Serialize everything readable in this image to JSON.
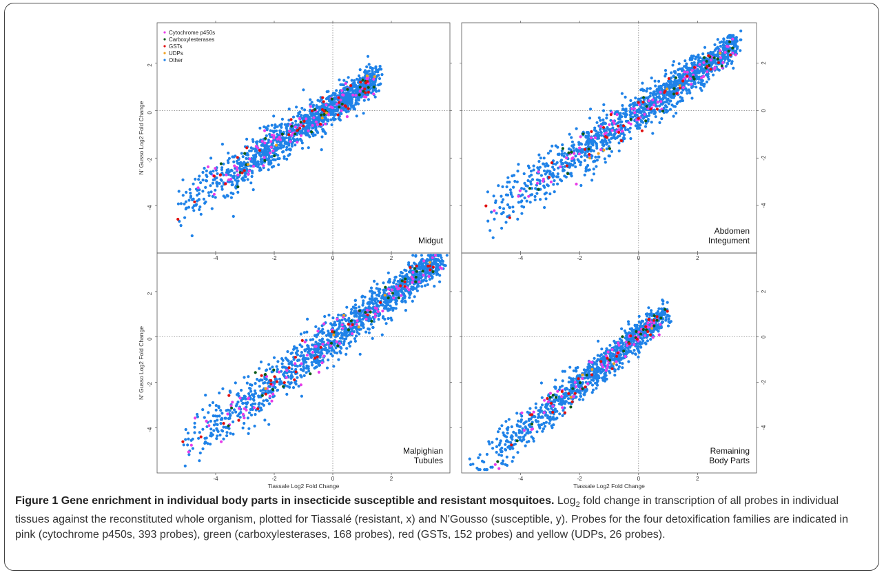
{
  "figure": {
    "caption_label": "Figure 1",
    "caption_title": "Gene enrichment in individual body parts in insecticide susceptible and resistant mosquitoes.",
    "caption_log": "Log",
    "caption_sub": "2",
    "caption_text": " fold change in transcription of all probes in individual tissues against the reconstituted whole organism, plotted for Tiassalé (resistant, x) and N'Gousso (susceptible, y). Probes for the four detoxification families are indicated in pink (cytochrome p450s, 393 probes), green (carboxylesterases, 168 probes), red (GSTs, 152 probes) and yellow (UDPs, 26 probes)."
  },
  "colors": {
    "p450": "#e83ee8",
    "carboxylesterases": "#0c5a18",
    "gsts": "#e01010",
    "udps": "#f0a020",
    "other": "#1f82e8"
  },
  "chart_data": [
    {
      "type": "scatter",
      "panel": "Midgut",
      "label_lines": [
        "Midgut"
      ],
      "xlabel": "",
      "ylabel": "N' Gusso Log2 Fold Change",
      "xlim": [
        -6,
        4
      ],
      "ylim": [
        -6,
        3.7
      ],
      "xticks": [
        -4,
        -2,
        0,
        2
      ],
      "yticks": [
        -4,
        -2,
        0,
        2
      ],
      "legend": {
        "position": "top-left",
        "entries": [
          "Cytochrome p450s",
          "Carboxylesterases",
          "GSTs",
          "UDPs",
          "Other"
        ]
      },
      "cloud": {
        "x_range": [
          -5.5,
          1.5
        ],
        "slope": 0.8,
        "intercept": 0.15,
        "spread": 0.42,
        "n_other": 1300
      },
      "series": [
        {
          "name": "Other",
          "color_key": "other",
          "n": 1300
        },
        {
          "name": "Cytochrome p450s",
          "color_key": "p450",
          "n": 90
        },
        {
          "name": "Carboxylesterases",
          "color_key": "carboxylesterases",
          "n": 30
        },
        {
          "name": "GSTs",
          "color_key": "gsts",
          "n": 35
        },
        {
          "name": "UDPs",
          "color_key": "udps",
          "n": 6
        }
      ]
    },
    {
      "type": "scatter",
      "panel": "Abdomen Integument",
      "label_lines": [
        "Abdomen",
        "Integument"
      ],
      "xlabel": "",
      "ylabel": "",
      "xlim": [
        -6,
        4
      ],
      "ylim": [
        -6,
        3.7
      ],
      "xticks": [
        -4,
        -2,
        0,
        2
      ],
      "yticks": [
        -4,
        -2,
        0,
        2
      ],
      "cloud": {
        "x_range": [
          -5.5,
          3.3
        ],
        "slope": 0.85,
        "intercept": -0.05,
        "spread": 0.45,
        "n_other": 1300
      },
      "series": [
        {
          "name": "Other",
          "color_key": "other",
          "n": 1300
        },
        {
          "name": "Cytochrome p450s",
          "color_key": "p450",
          "n": 90
        },
        {
          "name": "Carboxylesterases",
          "color_key": "carboxylesterases",
          "n": 30
        },
        {
          "name": "GSTs",
          "color_key": "gsts",
          "n": 35
        },
        {
          "name": "UDPs",
          "color_key": "udps",
          "n": 6
        }
      ]
    },
    {
      "type": "scatter",
      "panel": "Malpighian Tubules",
      "label_lines": [
        "Malpighian",
        "Tubules"
      ],
      "xlabel": "Tiassale Log2 Fold Change",
      "ylabel": "N' Gusso Log2 Fold Change",
      "xlim": [
        -6,
        4
      ],
      "ylim": [
        -6,
        3.7
      ],
      "xticks": [
        -4,
        -2,
        0,
        2
      ],
      "yticks": [
        -4,
        -2,
        0,
        2
      ],
      "cloud": {
        "x_range": [
          -5.5,
          3.7
        ],
        "slope": 0.95,
        "intercept": -0.05,
        "spread": 0.5,
        "n_other": 1300
      },
      "series": [
        {
          "name": "Other",
          "color_key": "other",
          "n": 1300
        },
        {
          "name": "Cytochrome p450s",
          "color_key": "p450",
          "n": 90
        },
        {
          "name": "Carboxylesterases",
          "color_key": "carboxylesterases",
          "n": 30
        },
        {
          "name": "GSTs",
          "color_key": "gsts",
          "n": 35
        },
        {
          "name": "UDPs",
          "color_key": "udps",
          "n": 6
        }
      ]
    },
    {
      "type": "scatter",
      "panel": "Remaining Body Parts",
      "label_lines": [
        "Remaining",
        "Body Parts"
      ],
      "xlabel": "Tiassale Log2 Fold Change",
      "ylabel": "",
      "xlim": [
        -6,
        4
      ],
      "ylim": [
        -6,
        3.7
      ],
      "xticks": [
        -4,
        -2,
        0,
        2
      ],
      "yticks": [
        -4,
        -2,
        0,
        2
      ],
      "cloud": {
        "x_range": [
          -5.6,
          0.9
        ],
        "slope": 1.05,
        "intercept": 0.05,
        "spread": 0.4,
        "n_other": 1000
      },
      "series": [
        {
          "name": "Other",
          "color_key": "other",
          "n": 1000
        },
        {
          "name": "Cytochrome p450s",
          "color_key": "p450",
          "n": 70
        },
        {
          "name": "Carboxylesterases",
          "color_key": "carboxylesterases",
          "n": 25
        },
        {
          "name": "GSTs",
          "color_key": "gsts",
          "n": 30
        },
        {
          "name": "UDPs",
          "color_key": "udps",
          "n": 5
        }
      ]
    }
  ]
}
